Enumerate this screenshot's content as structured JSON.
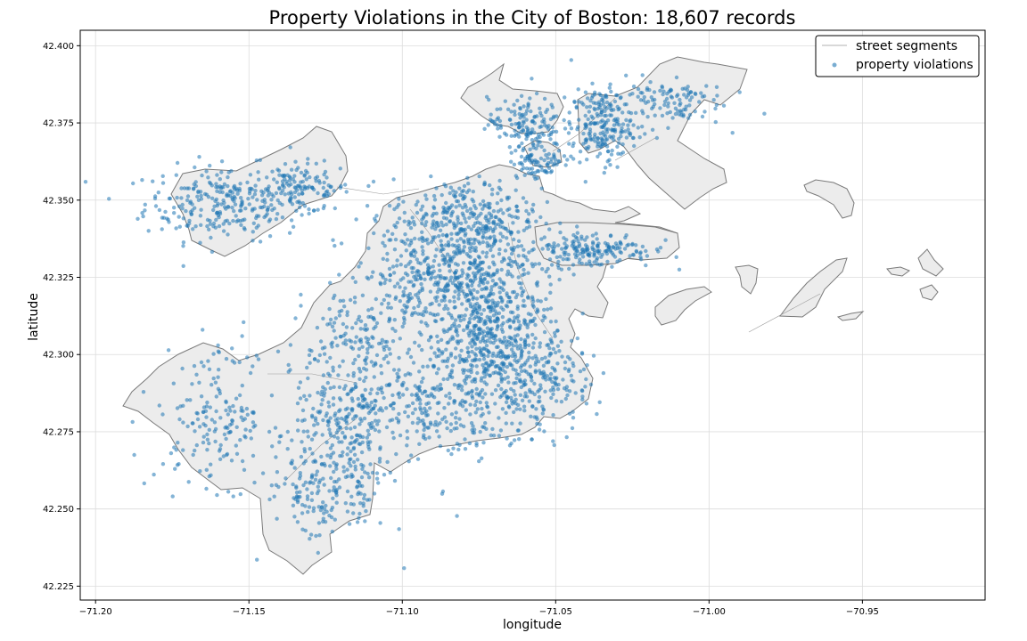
{
  "chart_data": {
    "type": "scatter",
    "title": "Property Violations in the City of Boston: 18,607 records",
    "xlabel": "longitude",
    "ylabel": "latitude",
    "xlim": [
      -71.205,
      -70.91
    ],
    "ylim": [
      42.2205,
      42.405
    ],
    "xticks": [
      "−71.20",
      "−71.15",
      "−71.10",
      "−71.05",
      "−71.00",
      "−70.95"
    ],
    "xtick_values": [
      -71.2,
      -71.15,
      -71.1,
      -71.05,
      -71.0,
      -70.95
    ],
    "yticks": [
      "42.225",
      "42.250",
      "42.275",
      "42.300",
      "42.325",
      "42.350",
      "42.375",
      "42.400"
    ],
    "ytick_values": [
      42.225,
      42.25,
      42.275,
      42.3,
      42.325,
      42.35,
      42.375,
      42.4
    ],
    "grid": true,
    "legend": {
      "placement": "top-right",
      "entries": [
        {
          "label": "street segments",
          "style": "line",
          "color": "#b0b0b0"
        },
        {
          "label": "property violations",
          "style": "point",
          "color": "#1f77b4"
        }
      ]
    },
    "colors": {
      "violations": "#1f77b4",
      "land": "#ececec",
      "boundary": "#7f7f7f",
      "streets": "#aaaaaa"
    },
    "series": [
      {
        "name": "property violations",
        "record_count": 18607,
        "clusters": [
          {
            "lon": -71.158,
            "lat": 42.349,
            "spread_lon": 0.013,
            "spread_lat": 0.006,
            "weight": 90
          },
          {
            "lon": -71.133,
            "lat": 42.354,
            "spread_lon": 0.008,
            "spread_lat": 0.004,
            "weight": 40
          },
          {
            "lon": -71.075,
            "lat": 42.323,
            "spread_lon": 0.011,
            "spread_lat": 0.013,
            "weight": 170
          },
          {
            "lon": -71.07,
            "lat": 42.3,
            "spread_lon": 0.011,
            "spread_lat": 0.011,
            "weight": 140
          },
          {
            "lon": -71.095,
            "lat": 42.325,
            "spread_lon": 0.009,
            "spread_lat": 0.008,
            "weight": 70
          },
          {
            "lon": -71.08,
            "lat": 42.345,
            "spread_lon": 0.012,
            "spread_lat": 0.006,
            "weight": 80
          },
          {
            "lon": -71.038,
            "lat": 42.334,
            "spread_lon": 0.01,
            "spread_lat": 0.003,
            "weight": 60
          },
          {
            "lon": -71.035,
            "lat": 42.374,
            "spread_lon": 0.005,
            "spread_lat": 0.006,
            "weight": 70
          },
          {
            "lon": -71.015,
            "lat": 42.382,
            "spread_lon": 0.01,
            "spread_lat": 0.004,
            "weight": 40
          },
          {
            "lon": -71.06,
            "lat": 42.375,
            "spread_lon": 0.006,
            "spread_lat": 0.004,
            "weight": 45
          },
          {
            "lon": -71.055,
            "lat": 42.363,
            "spread_lon": 0.005,
            "spread_lat": 0.003,
            "weight": 30
          },
          {
            "lon": -71.095,
            "lat": 42.283,
            "spread_lon": 0.013,
            "spread_lat": 0.009,
            "weight": 90
          },
          {
            "lon": -71.12,
            "lat": 42.275,
            "spread_lon": 0.008,
            "spread_lat": 0.011,
            "weight": 70
          },
          {
            "lon": -71.16,
            "lat": 42.28,
            "spread_lon": 0.01,
            "spread_lat": 0.011,
            "weight": 60
          },
          {
            "lon": -71.125,
            "lat": 42.255,
            "spread_lon": 0.01,
            "spread_lat": 0.008,
            "weight": 50
          },
          {
            "lon": -71.115,
            "lat": 42.305,
            "spread_lon": 0.008,
            "spread_lat": 0.009,
            "weight": 45
          },
          {
            "lon": -71.055,
            "lat": 42.29,
            "spread_lon": 0.008,
            "spread_lat": 0.008,
            "weight": 55
          }
        ]
      }
    ]
  }
}
